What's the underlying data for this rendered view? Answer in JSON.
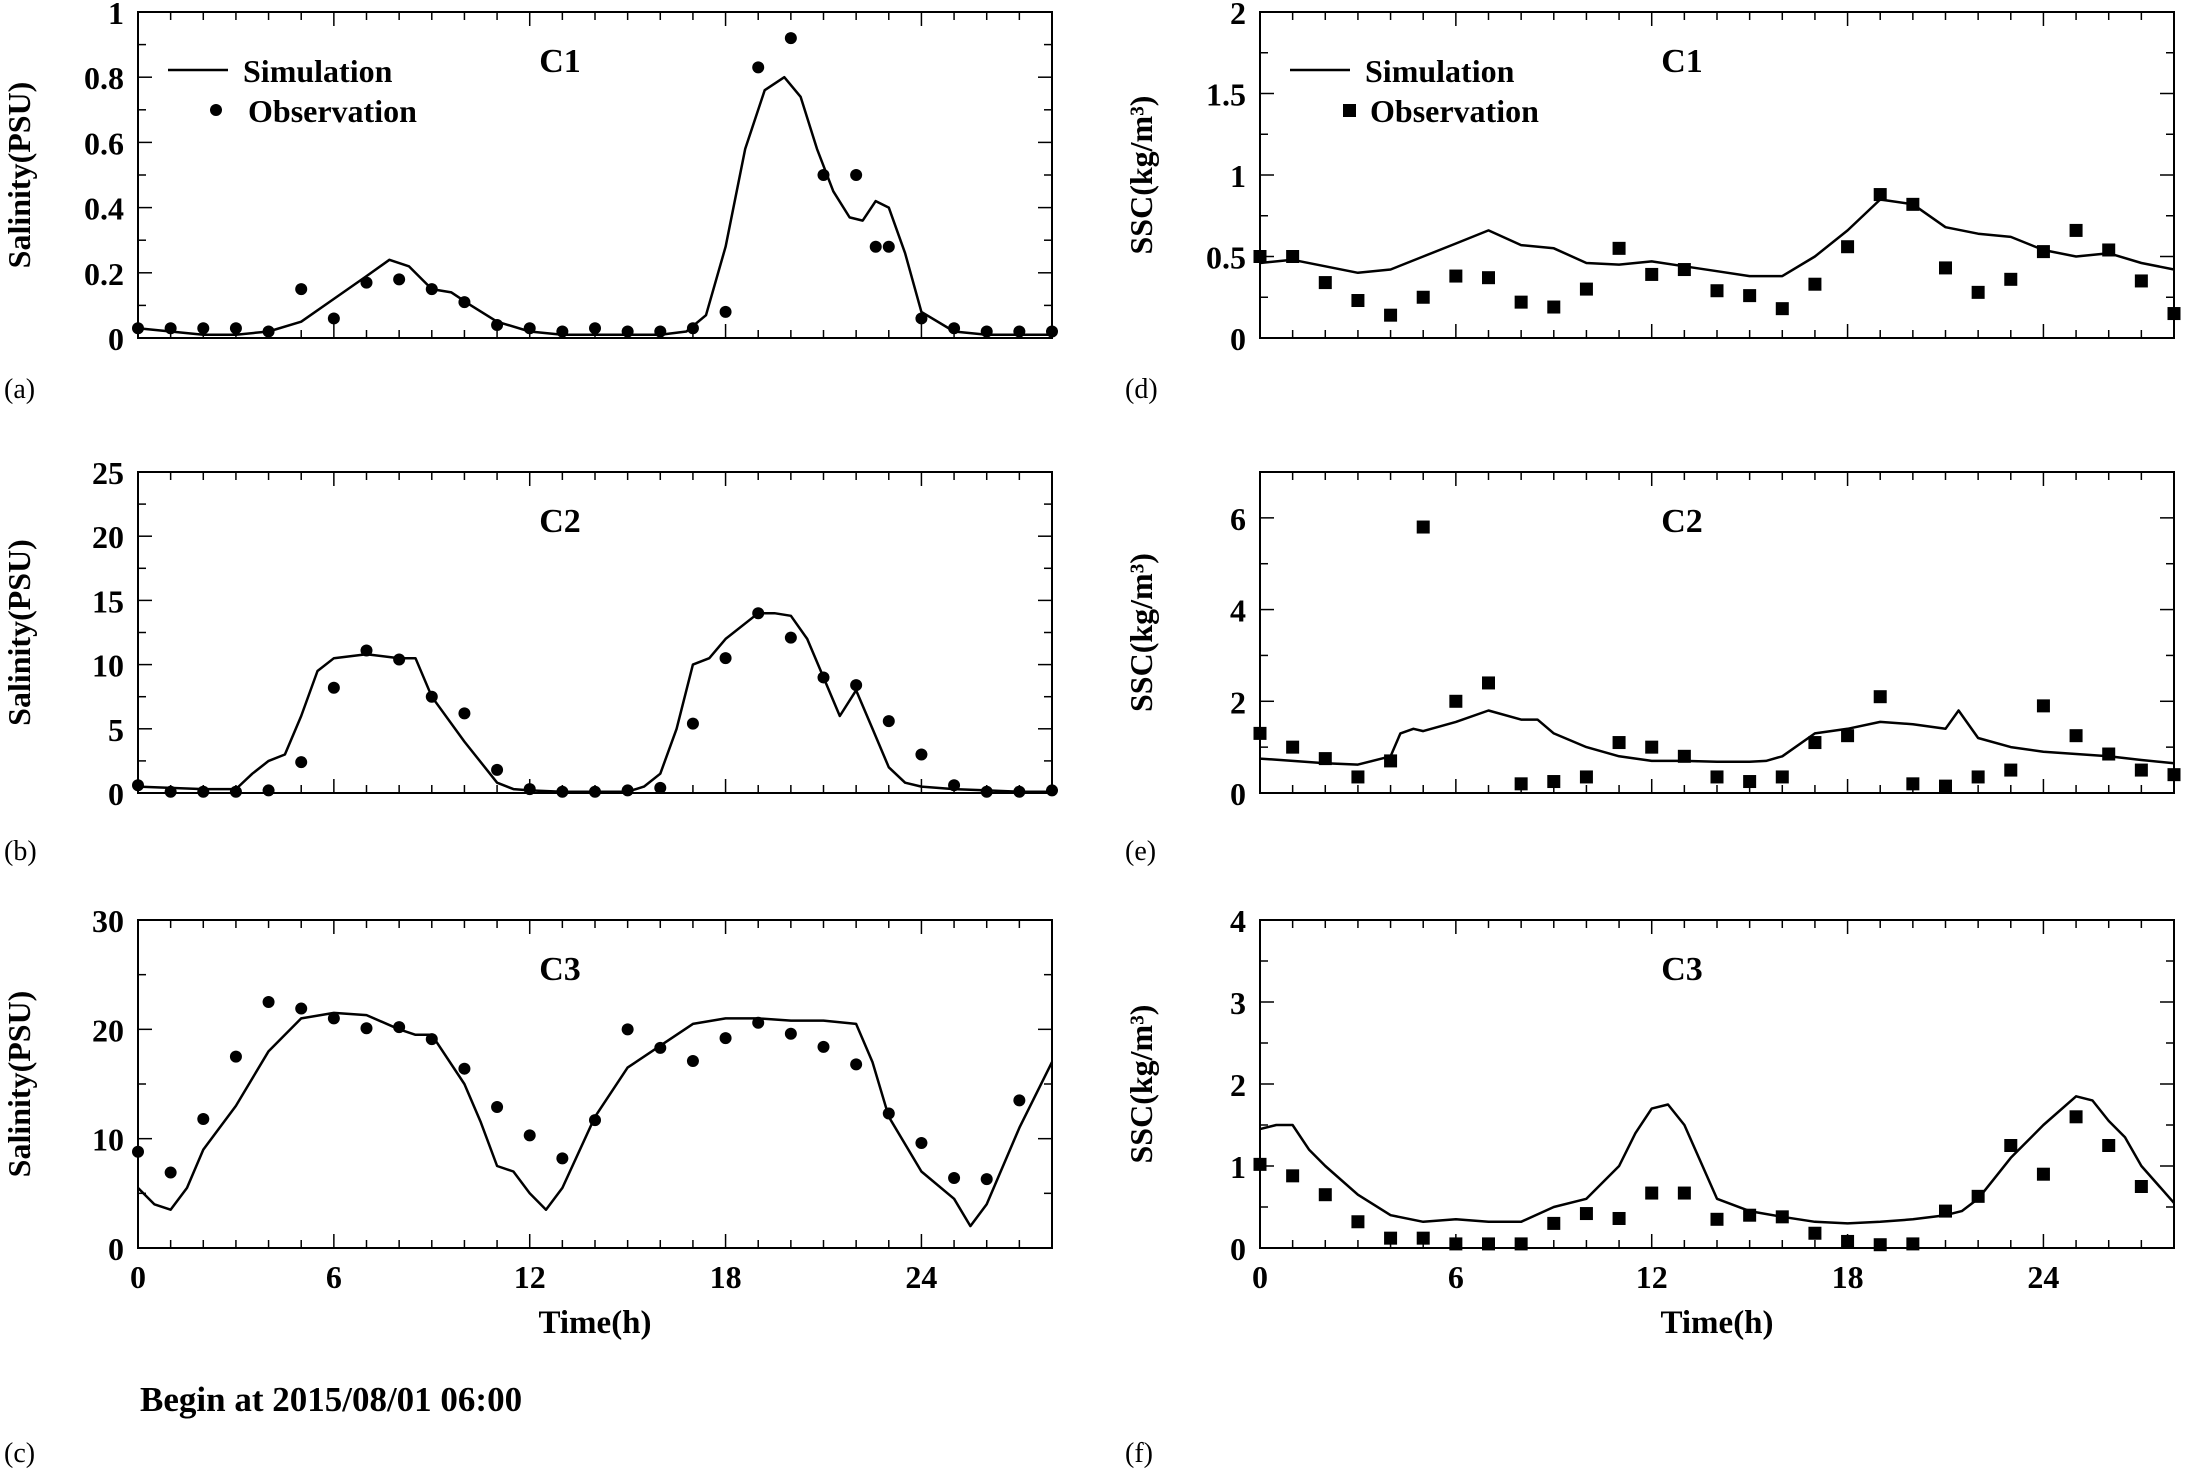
{
  "figure": {
    "footer": "Begin at 2015/08/01 06:00"
  },
  "chart_data": [
    {
      "type": "line",
      "panel_label": "(a)",
      "title": "C1",
      "xlabel": "",
      "ylabel": "Salinity(PSU)",
      "xlim": [
        0,
        28
      ],
      "ylim": [
        0,
        1
      ],
      "xticks": [
        0,
        6,
        12,
        18,
        24
      ],
      "show_xtick_labels": false,
      "yticks": [
        0,
        0.2,
        0.4,
        0.6,
        0.8,
        1
      ],
      "ytick_labels": [
        "0",
        "0.2",
        "0.4",
        "0.6",
        "0.8",
        "1"
      ],
      "legend": {
        "placement": "top-left",
        "line_label": "Simulation",
        "marker_label": "Observation"
      },
      "marker": "circle",
      "series": [
        {
          "name": "Simulation",
          "kind": "line",
          "x": [
            0,
            1,
            2,
            3,
            4,
            5,
            6,
            7,
            7.7,
            8.3,
            9,
            9.6,
            10.2,
            11,
            12,
            13,
            14,
            15,
            16,
            16.8,
            17.4,
            18,
            18.6,
            19.2,
            19.8,
            20.3,
            20.8,
            21.3,
            21.8,
            22.2,
            22.6,
            23,
            23.5,
            24,
            25,
            26,
            27,
            28
          ],
          "y": [
            0.03,
            0.02,
            0.01,
            0.01,
            0.02,
            0.05,
            0.12,
            0.19,
            0.24,
            0.22,
            0.15,
            0.14,
            0.1,
            0.05,
            0.02,
            0.01,
            0.01,
            0.01,
            0.01,
            0.02,
            0.07,
            0.28,
            0.58,
            0.76,
            0.8,
            0.74,
            0.58,
            0.45,
            0.37,
            0.36,
            0.42,
            0.4,
            0.26,
            0.08,
            0.02,
            0.01,
            0.01,
            0.01
          ]
        },
        {
          "name": "Observation",
          "kind": "points",
          "x": [
            0,
            1,
            2,
            3,
            4,
            5,
            6,
            7,
            8,
            9,
            10,
            11,
            12,
            13,
            14,
            15,
            16,
            17,
            18,
            19,
            20,
            21,
            22,
            22.6,
            23,
            24,
            25,
            26,
            27,
            28
          ],
          "y": [
            0.03,
            0.03,
            0.03,
            0.03,
            0.02,
            0.15,
            0.06,
            0.17,
            0.18,
            0.15,
            0.11,
            0.04,
            0.03,
            0.02,
            0.03,
            0.02,
            0.02,
            0.03,
            0.08,
            0.83,
            0.92,
            0.5,
            0.5,
            0.28,
            0.28,
            0.06,
            0.03,
            0.02,
            0.02,
            0.02
          ]
        }
      ]
    },
    {
      "type": "line",
      "panel_label": "(b)",
      "title": "C2",
      "xlabel": "",
      "ylabel": "Salinity(PSU)",
      "xlim": [
        0,
        28
      ],
      "ylim": [
        0,
        25
      ],
      "xticks": [
        0,
        6,
        12,
        18,
        24
      ],
      "show_xtick_labels": false,
      "yticks": [
        0,
        5,
        10,
        15,
        20,
        25
      ],
      "ytick_labels": [
        "0",
        "5",
        "10",
        "15",
        "20",
        "25"
      ],
      "marker": "circle",
      "series": [
        {
          "name": "Simulation",
          "kind": "line",
          "x": [
            0,
            1,
            2,
            3,
            3.5,
            4,
            4.5,
            5,
            5.5,
            6,
            7,
            8,
            8.5,
            9,
            10,
            11,
            11.5,
            12,
            13,
            14,
            15,
            15.5,
            16,
            16.5,
            17,
            17.5,
            18,
            19,
            19.5,
            20,
            20.5,
            21,
            21.5,
            22,
            22.5,
            23,
            23.5,
            24,
            25,
            26,
            27,
            28
          ],
          "y": [
            0.5,
            0.4,
            0.3,
            0.3,
            1.5,
            2.5,
            3,
            6,
            9.5,
            10.5,
            10.8,
            10.5,
            10.5,
            7.5,
            4,
            0.8,
            0.3,
            0.2,
            0.1,
            0.1,
            0.1,
            0.5,
            1.5,
            5,
            10,
            10.5,
            12,
            14,
            14,
            13.8,
            12,
            9,
            6,
            8,
            5,
            2,
            0.8,
            0.5,
            0.3,
            0.2,
            0.1,
            0.1
          ]
        },
        {
          "name": "Observation",
          "kind": "points",
          "x": [
            0,
            1,
            2,
            3,
            4,
            5,
            6,
            7,
            8,
            9,
            10,
            11,
            12,
            13,
            14,
            15,
            16,
            17,
            18,
            19,
            20,
            21,
            22,
            23,
            24,
            25,
            26,
            27,
            28
          ],
          "y": [
            0.6,
            0.1,
            0.1,
            0.1,
            0.2,
            2.4,
            8.2,
            11.1,
            10.4,
            7.5,
            6.2,
            1.8,
            0.3,
            0.1,
            0.1,
            0.2,
            0.4,
            5.4,
            10.5,
            14,
            12.1,
            9,
            8.4,
            5.6,
            3,
            0.6,
            0.1,
            0.1,
            0.2
          ]
        }
      ]
    },
    {
      "type": "line",
      "panel_label": "(c)",
      "title": "C3",
      "xlabel": "Time(h)",
      "ylabel": "Salinity(PSU)",
      "xlim": [
        0,
        28
      ],
      "ylim": [
        0,
        30
      ],
      "xticks": [
        0,
        6,
        12,
        18,
        24
      ],
      "show_xtick_labels": true,
      "yticks": [
        0,
        10,
        20,
        30
      ],
      "ytick_labels": [
        "0",
        "10",
        "20",
        "30"
      ],
      "marker": "circle",
      "series": [
        {
          "name": "Simulation",
          "kind": "line",
          "x": [
            0,
            0.5,
            1,
            1.5,
            2,
            3,
            4,
            5,
            6,
            7,
            8,
            8.5,
            9,
            10,
            10.5,
            11,
            11.5,
            12,
            12.5,
            13,
            14,
            15,
            16,
            17,
            18,
            19,
            20,
            21,
            22,
            22.5,
            23,
            24,
            25,
            25.5,
            26,
            27,
            28
          ],
          "y": [
            5.5,
            4,
            3.5,
            5.5,
            9,
            13,
            18,
            21,
            21.5,
            21.3,
            20,
            19.5,
            19.5,
            15,
            11.5,
            7.5,
            7,
            5,
            3.5,
            5.5,
            12,
            16.5,
            18.5,
            20.5,
            21,
            21,
            20.8,
            20.8,
            20.5,
            17,
            12,
            7,
            4.5,
            2,
            4,
            11,
            17
          ]
        },
        {
          "name": "Observation",
          "kind": "points",
          "x": [
            0,
            1,
            2,
            3,
            4,
            5,
            6,
            7,
            8,
            9,
            10,
            11,
            12,
            13,
            14,
            15,
            16,
            17,
            18,
            19,
            20,
            21,
            22,
            23,
            24,
            25,
            26,
            27
          ],
          "y": [
            8.8,
            6.9,
            11.8,
            17.5,
            22.5,
            21.9,
            21,
            20.1,
            20.2,
            19.1,
            16.4,
            12.9,
            10.3,
            8.2,
            11.7,
            20,
            18.3,
            17.1,
            19.2,
            20.6,
            19.6,
            18.4,
            16.8,
            12.3,
            9.6,
            6.4,
            6.3,
            13.5
          ]
        }
      ]
    },
    {
      "type": "line",
      "panel_label": "(d)",
      "title": "C1",
      "xlabel": "",
      "ylabel": "SSC(kg/m³)",
      "xlim": [
        0,
        28
      ],
      "ylim": [
        0,
        2
      ],
      "xticks": [
        0,
        6,
        12,
        18,
        24
      ],
      "show_xtick_labels": false,
      "yticks": [
        0,
        0.5,
        1,
        1.5,
        2
      ],
      "ytick_labels": [
        "0",
        "0.5",
        "1",
        "1.5",
        "2"
      ],
      "legend": {
        "placement": "top-left",
        "line_label": "Simulation",
        "marker_label": "Observation"
      },
      "marker": "square",
      "series": [
        {
          "name": "Simulation",
          "kind": "line",
          "x": [
            0,
            1,
            2,
            3,
            4,
            5,
            6,
            7,
            8,
            9,
            10,
            11,
            12,
            13,
            14,
            15,
            16,
            17,
            18,
            19,
            20,
            21,
            22,
            23,
            24,
            25,
            26,
            27,
            28
          ],
          "y": [
            0.46,
            0.48,
            0.44,
            0.4,
            0.42,
            0.5,
            0.58,
            0.66,
            0.57,
            0.55,
            0.46,
            0.45,
            0.47,
            0.44,
            0.41,
            0.38,
            0.38,
            0.5,
            0.66,
            0.85,
            0.82,
            0.68,
            0.64,
            0.62,
            0.54,
            0.5,
            0.52,
            0.46,
            0.42
          ]
        },
        {
          "name": "Observation",
          "kind": "points",
          "x": [
            0,
            1,
            2,
            3,
            4,
            5,
            6,
            7,
            8,
            9,
            10,
            11,
            12,
            13,
            14,
            15,
            16,
            17,
            18,
            19,
            20,
            21,
            22,
            23,
            24,
            25,
            26,
            27,
            28
          ],
          "y": [
            0.5,
            0.5,
            0.34,
            0.23,
            0.14,
            0.25,
            0.38,
            0.37,
            0.22,
            0.19,
            0.3,
            0.55,
            0.39,
            0.42,
            0.29,
            0.26,
            0.18,
            0.33,
            0.56,
            0.88,
            0.82,
            0.43,
            0.28,
            0.36,
            0.53,
            0.66,
            0.54,
            0.35,
            0.15
          ]
        }
      ]
    },
    {
      "type": "line",
      "panel_label": "(e)",
      "title": "C2",
      "xlabel": "",
      "ylabel": "SSC(kg/m³)",
      "xlim": [
        0,
        28
      ],
      "ylim": [
        0,
        7
      ],
      "xticks": [
        0,
        6,
        12,
        18,
        24
      ],
      "show_xtick_labels": false,
      "yticks": [
        0,
        2,
        4,
        6
      ],
      "ytick_labels": [
        "0",
        "2",
        "4",
        "6"
      ],
      "marker": "square",
      "series": [
        {
          "name": "Simulation",
          "kind": "line",
          "x": [
            0,
            1,
            2,
            3,
            4,
            4.3,
            4.7,
            5,
            6,
            7,
            8,
            8.5,
            9,
            10,
            11,
            12,
            13,
            14,
            15,
            15.5,
            16,
            17,
            18,
            19,
            20,
            21,
            21.4,
            22,
            23,
            24,
            25,
            26,
            27,
            28
          ],
          "y": [
            0.75,
            0.7,
            0.65,
            0.62,
            0.8,
            1.3,
            1.4,
            1.35,
            1.55,
            1.8,
            1.6,
            1.6,
            1.3,
            1,
            0.8,
            0.7,
            0.7,
            0.68,
            0.68,
            0.7,
            0.8,
            1.3,
            1.4,
            1.55,
            1.5,
            1.4,
            1.8,
            1.2,
            1,
            0.9,
            0.85,
            0.8,
            0.72,
            0.65
          ]
        },
        {
          "name": "Observation",
          "kind": "points",
          "x": [
            0,
            1,
            2,
            3,
            4,
            5,
            6,
            7,
            8,
            9,
            10,
            11,
            12,
            13,
            14,
            15,
            16,
            17,
            18,
            19,
            20,
            21,
            22,
            23,
            24,
            25,
            26,
            27,
            28
          ],
          "y": [
            1.3,
            1,
            0.75,
            0.35,
            0.7,
            5.8,
            2,
            2.4,
            0.2,
            0.25,
            0.35,
            1.1,
            1,
            0.8,
            0.35,
            0.25,
            0.35,
            1.1,
            1.25,
            2.1,
            0.2,
            0.15,
            0.35,
            0.5,
            1.9,
            1.25,
            0.85,
            0.5,
            0.4
          ]
        }
      ]
    },
    {
      "type": "line",
      "panel_label": "(f)",
      "title": "C3",
      "xlabel": "Time(h)",
      "ylabel": "SSC(kg/m³)",
      "xlim": [
        0,
        28
      ],
      "ylim": [
        0,
        4
      ],
      "xticks": [
        0,
        6,
        12,
        18,
        24
      ],
      "show_xtick_labels": true,
      "yticks": [
        0,
        1,
        2,
        3,
        4
      ],
      "ytick_labels": [
        "0",
        "1",
        "2",
        "3",
        "4"
      ],
      "marker": "square",
      "series": [
        {
          "name": "Simulation",
          "kind": "line",
          "x": [
            0,
            0.5,
            1,
            1.5,
            2,
            3,
            4,
            5,
            6,
            7,
            8,
            9,
            10,
            11,
            11.5,
            12,
            12.5,
            13,
            13.5,
            14,
            15,
            16,
            17,
            18,
            19,
            20,
            21,
            21.5,
            22,
            22.5,
            23,
            24,
            25,
            25.5,
            26,
            26.5,
            27,
            28
          ],
          "y": [
            1.45,
            1.5,
            1.5,
            1.2,
            1,
            0.65,
            0.4,
            0.32,
            0.35,
            0.32,
            0.32,
            0.5,
            0.6,
            1,
            1.4,
            1.7,
            1.75,
            1.5,
            1.05,
            0.6,
            0.45,
            0.38,
            0.32,
            0.3,
            0.32,
            0.35,
            0.4,
            0.45,
            0.6,
            0.85,
            1.1,
            1.5,
            1.85,
            1.8,
            1.55,
            1.35,
            1,
            0.55
          ]
        },
        {
          "name": "Observation",
          "kind": "points",
          "x": [
            0,
            1,
            2,
            3,
            4,
            5,
            6,
            7,
            8,
            9,
            10,
            11,
            12,
            13,
            14,
            15,
            16,
            17,
            18,
            19,
            20,
            21,
            22,
            23,
            24,
            25,
            26,
            27
          ],
          "y": [
            1.02,
            0.88,
            0.65,
            0.32,
            0.12,
            0.12,
            0.05,
            0.05,
            0.05,
            0.3,
            0.42,
            0.36,
            0.67,
            0.67,
            0.35,
            0.4,
            0.38,
            0.18,
            0.08,
            0.04,
            0.05,
            0.45,
            0.63,
            1.25,
            0.9,
            1.6,
            1.25,
            0.75
          ]
        }
      ]
    }
  ]
}
